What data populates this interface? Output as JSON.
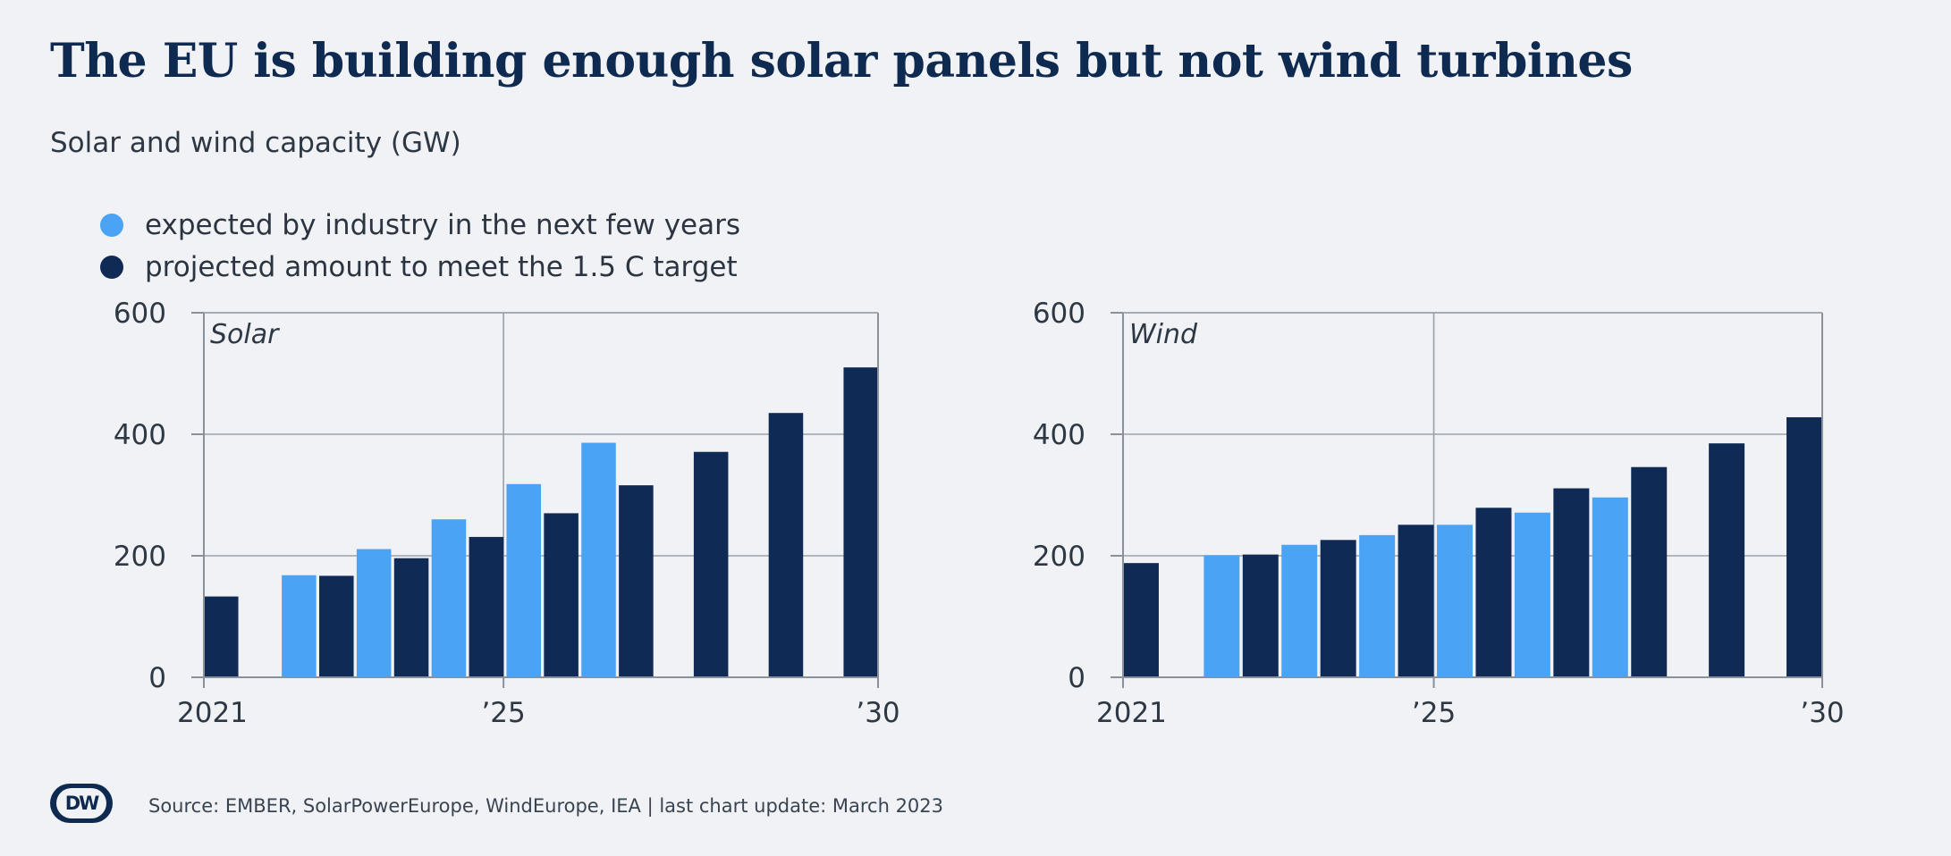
{
  "title": "The EU is building enough solar panels but not wind turbines",
  "subtitle": "Solar and wind capacity (GW)",
  "legend": [
    {
      "label": "expected by industry in the next few years",
      "color": "#4ba3f5"
    },
    {
      "label": "projected amount to meet the 1.5 C target",
      "color": "#0f2a55"
    }
  ],
  "source": "Source: EMBER, SolarPowerEurope, WindEurope, IEA | last chart update: March 2023",
  "logo_text": "DW",
  "chart_data": [
    {
      "type": "bar",
      "panel_label": "Solar",
      "ylim": [
        0,
        600
      ],
      "yticks": [
        0,
        200,
        400,
        600
      ],
      "xlim": [
        2021,
        2030
      ],
      "xticks": [
        2021,
        2025,
        2030
      ],
      "xtick_labels": [
        "2021",
        "’25",
        "’30"
      ],
      "grid": true,
      "series": [
        {
          "name": "expected by industry in the next few years",
          "color": "#4ba3f5",
          "x": [
            2022,
            2023,
            2024,
            2025,
            2026
          ],
          "values": [
            168,
            211,
            260,
            318,
            386
          ]
        },
        {
          "name": "projected amount to meet the 1.5 C target",
          "color": "#0f2a55",
          "x": [
            2021,
            2022,
            2023,
            2024,
            2025,
            2026,
            2027,
            2028,
            2029
          ],
          "values": [
            133,
            167,
            196,
            231,
            270,
            316,
            371,
            435,
            510
          ]
        }
      ]
    },
    {
      "type": "bar",
      "panel_label": "Wind",
      "ylim": [
        0,
        600
      ],
      "yticks": [
        0,
        200,
        400,
        600
      ],
      "xlim": [
        2021,
        2030
      ],
      "xticks": [
        2021,
        2025,
        2030
      ],
      "xtick_labels": [
        "2021",
        "’25",
        "’30"
      ],
      "grid": true,
      "series": [
        {
          "name": "expected by industry in the next few years",
          "color": "#4ba3f5",
          "x": [
            2022,
            2023,
            2024,
            2025,
            2026,
            2027
          ],
          "values": [
            201,
            218,
            234,
            251,
            271,
            296
          ]
        },
        {
          "name": "projected amount to meet the 1.5 C target",
          "color": "#0f2a55",
          "x": [
            2021,
            2022,
            2023,
            2024,
            2025,
            2026,
            2027,
            2028,
            2029
          ],
          "values": [
            188,
            202,
            226,
            251,
            279,
            311,
            346,
            385,
            428
          ]
        }
      ]
    }
  ]
}
